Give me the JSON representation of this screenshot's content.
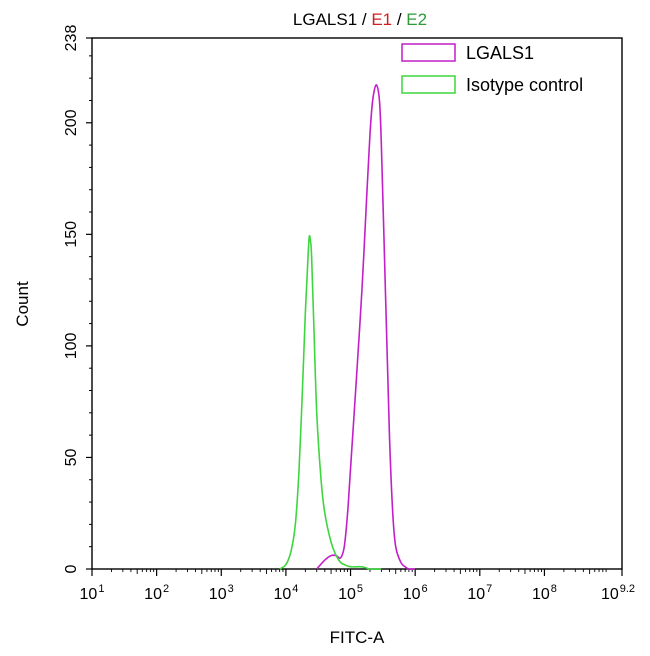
{
  "chart_data": {
    "type": "line",
    "title_parts": [
      {
        "text": "LGALS1",
        "color": "#000000"
      },
      {
        "text": " / ",
        "color": "#000000"
      },
      {
        "text": "E1",
        "color": "#cc1f1f"
      },
      {
        "text": " / ",
        "color": "#000000"
      },
      {
        "text": "E2",
        "color": "#2e9a3a"
      }
    ],
    "xlabel": "FITC-A",
    "ylabel": "Count",
    "x_scale": "log",
    "xlim": [
      10,
      1584893192
    ],
    "ylim": [
      0,
      238
    ],
    "x_ticks": [
      {
        "base": "10",
        "exp": "1"
      },
      {
        "base": "10",
        "exp": "2"
      },
      {
        "base": "10",
        "exp": "3"
      },
      {
        "base": "10",
        "exp": "4"
      },
      {
        "base": "10",
        "exp": "5"
      },
      {
        "base": "10",
        "exp": "6"
      },
      {
        "base": "10",
        "exp": "7"
      },
      {
        "base": "10",
        "exp": "8"
      },
      {
        "base": "10",
        "exp": "9.2"
      }
    ],
    "y_ticks": [
      "0",
      "50",
      "100",
      "150",
      "200",
      "238"
    ],
    "legend_position": "top-right",
    "series": [
      {
        "name": "LGALS1",
        "color": "#c21fc9",
        "x": [
          30000,
          40000,
          50000,
          60000,
          70000,
          80000,
          90000,
          100000,
          120000,
          150000,
          180000,
          200000,
          220000,
          250000,
          280000,
          300000,
          350000,
          400000,
          450000,
          500000,
          600000,
          700000,
          800000,
          1000000
        ],
        "y": [
          0,
          4,
          6,
          6,
          5,
          10,
          25,
          45,
          80,
          125,
          170,
          195,
          210,
          217,
          210,
          190,
          120,
          60,
          25,
          10,
          3,
          1,
          0,
          0
        ]
      },
      {
        "name": "Isotype control",
        "color": "#3ed63e",
        "x": [
          8000,
          10000,
          12000,
          14000,
          16000,
          18000,
          20000,
          22000,
          23000,
          24000,
          25000,
          27000,
          30000,
          35000,
          40000,
          50000,
          60000,
          70000,
          80000,
          100000,
          150000,
          200000,
          300000
        ],
        "y": [
          0,
          2,
          8,
          20,
          45,
          80,
          115,
          140,
          149,
          147,
          140,
          110,
          70,
          40,
          25,
          12,
          6,
          3,
          2,
          1,
          1,
          0,
          0
        ]
      }
    ]
  }
}
